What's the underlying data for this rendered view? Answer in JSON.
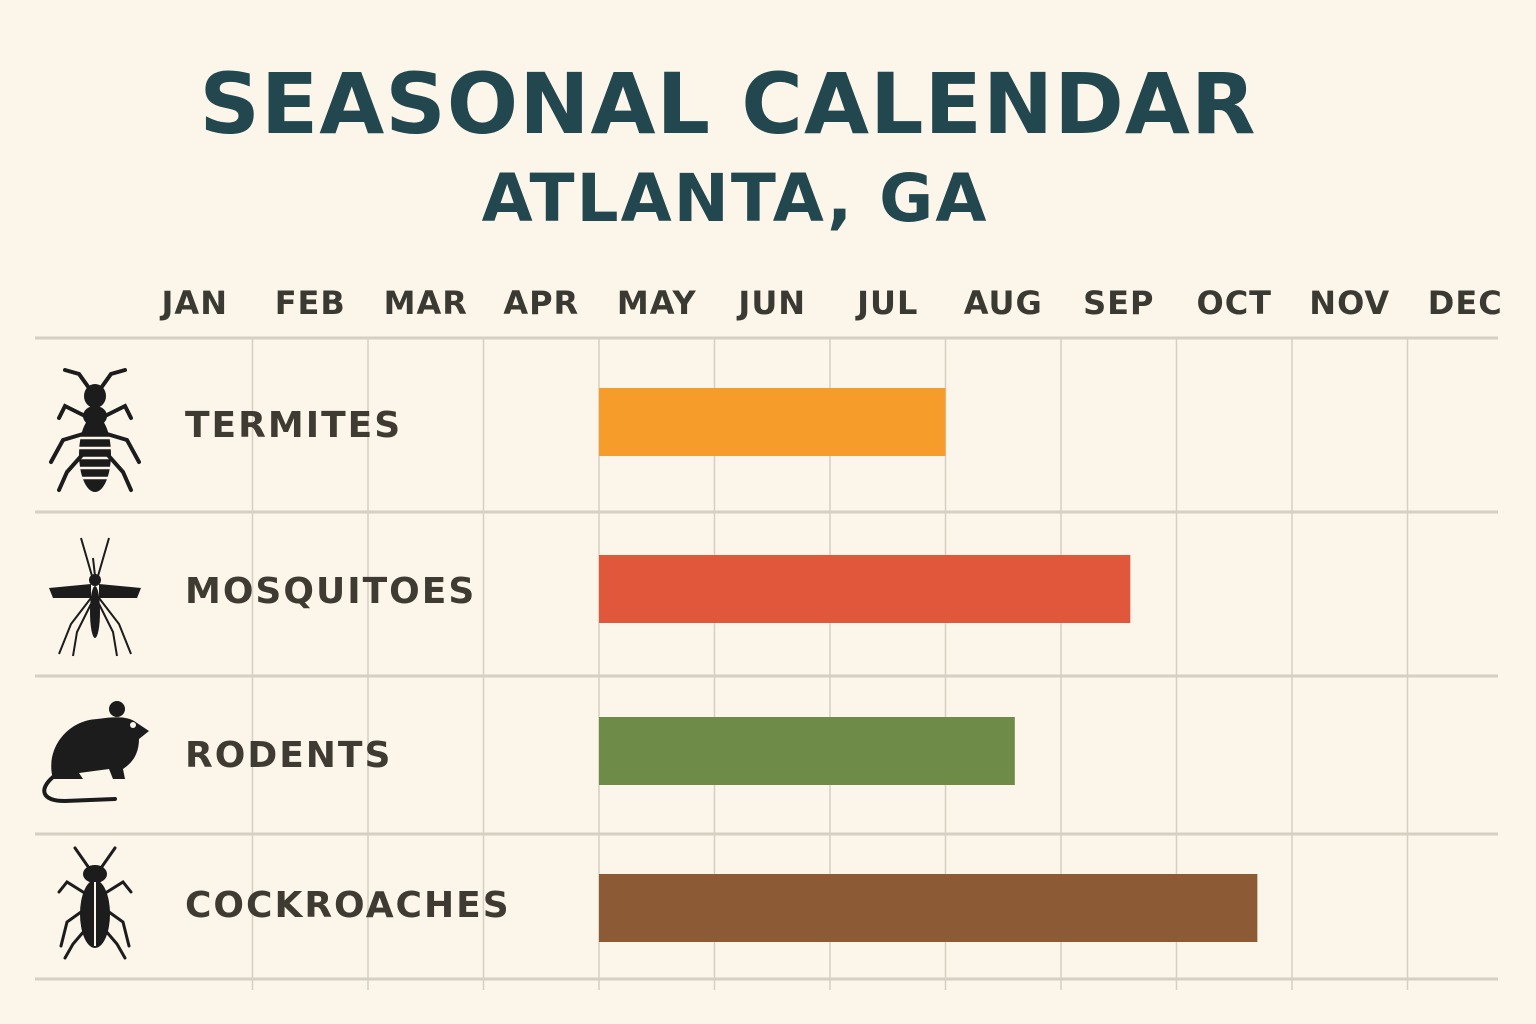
{
  "header": {
    "title": "SEASONAL CALENDAR",
    "subtitle": "ATLANTA, GA"
  },
  "chart_data": {
    "type": "bar",
    "orientation": "horizontal-gantt",
    "months": [
      "JAN",
      "FEB",
      "MAR",
      "APR",
      "MAY",
      "JUN",
      "JUL",
      "AUG",
      "SEP",
      "OCT",
      "NOV",
      "DEC"
    ],
    "rows": [
      {
        "label": "TERMITES",
        "icon": "termite-icon",
        "start_month": "MAY",
        "end_month": "AUG",
        "start": 5,
        "end": 8.0,
        "color": "#f59c2a"
      },
      {
        "label": "MOSQUITOES",
        "icon": "mosquito-icon",
        "start_month": "MAY",
        "end_month": "OCT",
        "start": 5,
        "end": 9.6,
        "color": "#e0573b"
      },
      {
        "label": "RODENTS",
        "icon": "rodent-icon",
        "start_month": "MAY",
        "end_month": "SEP",
        "start": 5,
        "end": 8.6,
        "color": "#6e8c48"
      },
      {
        "label": "COCKROACHES",
        "icon": "cockroach-icon",
        "start_month": "MAY",
        "end_month": "NOV",
        "start": 5,
        "end": 10.7,
        "color": "#8c5a35"
      }
    ],
    "grid": true
  },
  "colors": {
    "background": "#fbf5ea",
    "title": "#23474f",
    "gridline": "#d6d0c3",
    "label": "#3f3b32",
    "icon": "#1c1c1c"
  }
}
